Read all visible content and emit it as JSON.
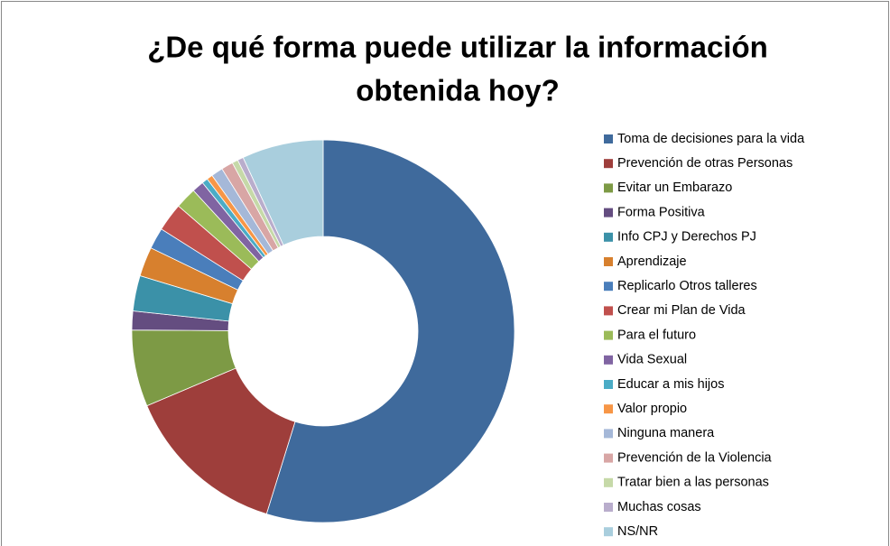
{
  "chart_data": {
    "type": "donut",
    "title": [
      "¿De qué forma puede utilizar la información",
      "obtenida hoy?"
    ],
    "categories": [
      "Toma de decisiones para la vida",
      "Prevención de otras Personas",
      "Evitar un Embarazo",
      "Forma Positiva",
      "Info CPJ y Derechos PJ",
      "Aprendizaje",
      "Replicarlo Otros talleres",
      "Crear mi Plan de Vida",
      "Para el futuro",
      "Vida Sexual",
      "Educar a mis hijos",
      "Valor propio",
      "Ninguna manera",
      "Prevención de la Violencia",
      "Tratar bien a las personas",
      "Muchas cosas",
      "NS/NR"
    ],
    "values": [
      55,
      13.9,
      6.5,
      1.6,
      3,
      2.5,
      1.8,
      2.4,
      1.8,
      1,
      0.5,
      0.5,
      1,
      1,
      0.5,
      0.5,
      6.9
    ],
    "colors": [
      "#3f6a9c",
      "#9e3e3b",
      "#7d9a45",
      "#644d80",
      "#3b91a8",
      "#d7802e",
      "#4a7ebb",
      "#c0504d",
      "#9bbb59",
      "#8064a2",
      "#4bacc6",
      "#f79646",
      "#a5b8d8",
      "#d8a6a5",
      "#c6d9a8",
      "#b9adcc",
      "#a9cedd"
    ],
    "legend": "right"
  }
}
